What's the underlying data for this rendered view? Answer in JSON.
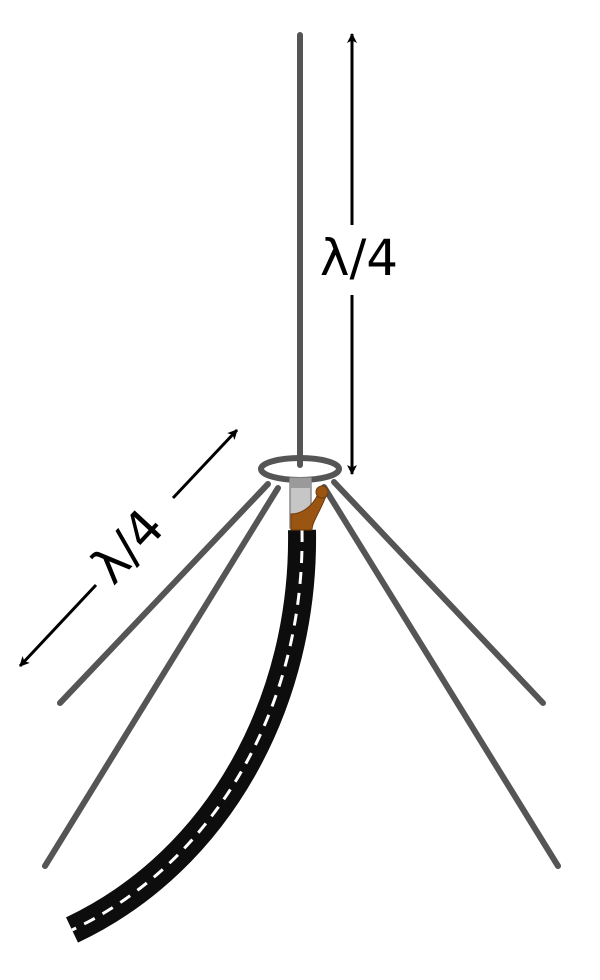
{
  "diagram": {
    "vertical_label": "λ/4",
    "diagonal_label": "λ/4"
  },
  "colors": {
    "rod": "#555555",
    "cable_jacket": "#0d0d0d",
    "cable_centerline": "#ffffff",
    "copper": "#9a5512",
    "insulator": "#c6c6c6",
    "arrow": "#000000"
  }
}
